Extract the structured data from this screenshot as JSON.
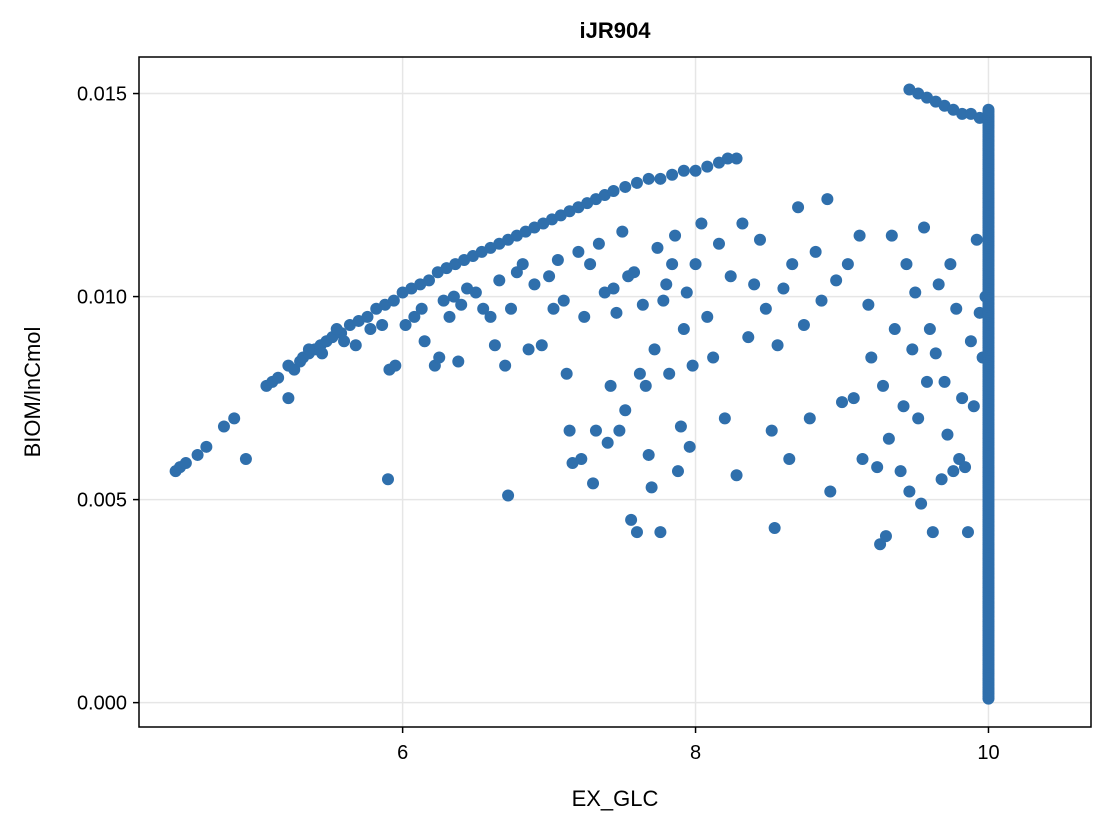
{
  "chart_data": {
    "type": "scatter",
    "title": "iJR904",
    "xlabel": "EX_GLC",
    "ylabel": "BIOM/lnCmol",
    "xlim": [
      4.2,
      10.7
    ],
    "ylim": [
      -0.0006,
      0.0159
    ],
    "xticks": [
      {
        "value": 6,
        "label": "6"
      },
      {
        "value": 8,
        "label": "8"
      },
      {
        "value": 10,
        "label": "10"
      }
    ],
    "yticks": [
      {
        "value": 0.0,
        "label": "0.000"
      },
      {
        "value": 0.005,
        "label": "0.005"
      },
      {
        "value": 0.01,
        "label": "0.010"
      },
      {
        "value": 0.015,
        "label": "0.015"
      }
    ],
    "grid": true,
    "color": "#2f6fac",
    "series": [
      {
        "points": [
          [
            4.45,
            0.0057
          ],
          [
            4.48,
            0.0058
          ],
          [
            4.52,
            0.0059
          ],
          [
            4.6,
            0.0061
          ],
          [
            4.66,
            0.0063
          ],
          [
            4.78,
            0.0068
          ],
          [
            4.85,
            0.007
          ],
          [
            4.93,
            0.006
          ],
          [
            5.07,
            0.0078
          ],
          [
            5.11,
            0.0079
          ],
          [
            5.15,
            0.008
          ],
          [
            5.22,
            0.0075
          ],
          [
            5.26,
            0.0082
          ],
          [
            5.22,
            0.0083
          ],
          [
            5.3,
            0.0084
          ],
          [
            5.32,
            0.0085
          ],
          [
            5.36,
            0.0086
          ],
          [
            5.4,
            0.0087
          ],
          [
            5.44,
            0.0088
          ],
          [
            5.48,
            0.0089
          ],
          [
            5.52,
            0.009
          ],
          [
            5.58,
            0.0091
          ],
          [
            5.64,
            0.0093
          ],
          [
            5.7,
            0.0094
          ],
          [
            5.76,
            0.0095
          ],
          [
            5.82,
            0.0097
          ],
          [
            5.88,
            0.0098
          ],
          [
            5.94,
            0.0099
          ],
          [
            6.0,
            0.0101
          ],
          [
            6.06,
            0.0102
          ],
          [
            6.12,
            0.0103
          ],
          [
            6.18,
            0.0104
          ],
          [
            6.24,
            0.0106
          ],
          [
            6.3,
            0.0107
          ],
          [
            6.36,
            0.0108
          ],
          [
            6.42,
            0.0109
          ],
          [
            6.48,
            0.011
          ],
          [
            6.54,
            0.0111
          ],
          [
            6.6,
            0.0112
          ],
          [
            6.66,
            0.0113
          ],
          [
            6.72,
            0.0114
          ],
          [
            6.78,
            0.0115
          ],
          [
            6.84,
            0.0116
          ],
          [
            6.9,
            0.0117
          ],
          [
            6.96,
            0.0118
          ],
          [
            7.02,
            0.0119
          ],
          [
            7.08,
            0.012
          ],
          [
            7.14,
            0.0121
          ],
          [
            7.2,
            0.0122
          ],
          [
            7.26,
            0.0123
          ],
          [
            7.32,
            0.0124
          ],
          [
            7.38,
            0.0125
          ],
          [
            7.44,
            0.0126
          ],
          [
            7.52,
            0.0127
          ],
          [
            7.6,
            0.0128
          ],
          [
            7.68,
            0.0129
          ],
          [
            7.76,
            0.0129
          ],
          [
            7.84,
            0.013
          ],
          [
            7.92,
            0.0131
          ],
          [
            8.0,
            0.0131
          ],
          [
            8.08,
            0.0132
          ],
          [
            8.16,
            0.0133
          ],
          [
            8.22,
            0.0134
          ],
          [
            8.28,
            0.0134
          ],
          [
            5.36,
            0.0087
          ],
          [
            5.45,
            0.0086
          ],
          [
            5.55,
            0.0092
          ],
          [
            5.6,
            0.0089
          ],
          [
            5.68,
            0.0088
          ],
          [
            5.78,
            0.0092
          ],
          [
            5.86,
            0.0093
          ],
          [
            5.9,
            0.0055
          ],
          [
            5.91,
            0.0082
          ],
          [
            5.95,
            0.0083
          ],
          [
            6.02,
            0.0093
          ],
          [
            6.08,
            0.0095
          ],
          [
            6.13,
            0.0097
          ],
          [
            6.15,
            0.0089
          ],
          [
            6.22,
            0.0083
          ],
          [
            6.25,
            0.0085
          ],
          [
            6.28,
            0.0099
          ],
          [
            6.32,
            0.0095
          ],
          [
            6.35,
            0.01
          ],
          [
            6.38,
            0.0084
          ],
          [
            6.4,
            0.0098
          ],
          [
            6.44,
            0.0102
          ],
          [
            6.5,
            0.0101
          ],
          [
            6.55,
            0.0097
          ],
          [
            6.6,
            0.0095
          ],
          [
            6.63,
            0.0088
          ],
          [
            6.66,
            0.0104
          ],
          [
            6.7,
            0.0083
          ],
          [
            6.72,
            0.0051
          ],
          [
            6.74,
            0.0097
          ],
          [
            6.78,
            0.0106
          ],
          [
            6.82,
            0.0108
          ],
          [
            6.86,
            0.0087
          ],
          [
            6.9,
            0.0103
          ],
          [
            6.95,
            0.0088
          ],
          [
            7.0,
            0.0105
          ],
          [
            7.03,
            0.0097
          ],
          [
            7.06,
            0.0109
          ],
          [
            7.1,
            0.0099
          ],
          [
            7.12,
            0.0081
          ],
          [
            7.14,
            0.0067
          ],
          [
            7.16,
            0.0059
          ],
          [
            7.2,
            0.0111
          ],
          [
            7.22,
            0.006
          ],
          [
            7.24,
            0.0095
          ],
          [
            7.28,
            0.0108
          ],
          [
            7.3,
            0.0054
          ],
          [
            7.32,
            0.0067
          ],
          [
            7.34,
            0.0113
          ],
          [
            7.38,
            0.0101
          ],
          [
            7.4,
            0.0064
          ],
          [
            7.42,
            0.0078
          ],
          [
            7.44,
            0.0102
          ],
          [
            7.46,
            0.0096
          ],
          [
            7.48,
            0.0067
          ],
          [
            7.5,
            0.0116
          ],
          [
            7.52,
            0.0072
          ],
          [
            7.54,
            0.0105
          ],
          [
            7.56,
            0.0045
          ],
          [
            7.58,
            0.0106
          ],
          [
            7.6,
            0.0042
          ],
          [
            7.62,
            0.0081
          ],
          [
            7.64,
            0.0098
          ],
          [
            7.66,
            0.0078
          ],
          [
            7.68,
            0.0061
          ],
          [
            7.7,
            0.0053
          ],
          [
            7.72,
            0.0087
          ],
          [
            7.74,
            0.0112
          ],
          [
            7.76,
            0.0042
          ],
          [
            7.78,
            0.0099
          ],
          [
            7.8,
            0.0103
          ],
          [
            7.82,
            0.0081
          ],
          [
            7.84,
            0.0108
          ],
          [
            7.86,
            0.0115
          ],
          [
            7.88,
            0.0057
          ],
          [
            7.9,
            0.0068
          ],
          [
            7.92,
            0.0092
          ],
          [
            7.94,
            0.0101
          ],
          [
            7.96,
            0.0063
          ],
          [
            7.98,
            0.0083
          ],
          [
            8.0,
            0.0108
          ],
          [
            8.04,
            0.0118
          ],
          [
            8.08,
            0.0095
          ],
          [
            8.12,
            0.0085
          ],
          [
            8.16,
            0.0113
          ],
          [
            8.2,
            0.007
          ],
          [
            8.24,
            0.0105
          ],
          [
            8.28,
            0.0056
          ],
          [
            8.32,
            0.0118
          ],
          [
            8.36,
            0.009
          ],
          [
            8.4,
            0.0103
          ],
          [
            8.44,
            0.0114
          ],
          [
            8.48,
            0.0097
          ],
          [
            8.52,
            0.0067
          ],
          [
            8.54,
            0.0043
          ],
          [
            8.56,
            0.0088
          ],
          [
            8.6,
            0.0102
          ],
          [
            8.64,
            0.006
          ],
          [
            8.66,
            0.0108
          ],
          [
            8.7,
            0.0122
          ],
          [
            8.74,
            0.0093
          ],
          [
            8.78,
            0.007
          ],
          [
            8.82,
            0.0111
          ],
          [
            8.86,
            0.0099
          ],
          [
            8.9,
            0.0124
          ],
          [
            8.92,
            0.0052
          ],
          [
            8.96,
            0.0104
          ],
          [
            9.0,
            0.0074
          ],
          [
            9.04,
            0.0108
          ],
          [
            9.08,
            0.0075
          ],
          [
            9.12,
            0.0115
          ],
          [
            9.14,
            0.006
          ],
          [
            9.18,
            0.0098
          ],
          [
            9.2,
            0.0085
          ],
          [
            9.24,
            0.0058
          ],
          [
            9.26,
            0.0039
          ],
          [
            9.28,
            0.0078
          ],
          [
            9.3,
            0.0041
          ],
          [
            9.32,
            0.0065
          ],
          [
            9.34,
            0.0115
          ],
          [
            9.36,
            0.0092
          ],
          [
            9.4,
            0.0057
          ],
          [
            9.42,
            0.0073
          ],
          [
            9.44,
            0.0108
          ],
          [
            9.46,
            0.0052
          ],
          [
            9.48,
            0.0087
          ],
          [
            9.5,
            0.0101
          ],
          [
            9.52,
            0.007
          ],
          [
            9.54,
            0.0049
          ],
          [
            9.56,
            0.0117
          ],
          [
            9.58,
            0.0079
          ],
          [
            9.6,
            0.0092
          ],
          [
            9.62,
            0.0042
          ],
          [
            9.64,
            0.0086
          ],
          [
            9.66,
            0.0103
          ],
          [
            9.68,
            0.0055
          ],
          [
            9.7,
            0.0079
          ],
          [
            9.72,
            0.0066
          ],
          [
            9.74,
            0.0108
          ],
          [
            9.76,
            0.0057
          ],
          [
            9.78,
            0.0097
          ],
          [
            9.8,
            0.006
          ],
          [
            9.82,
            0.0075
          ],
          [
            9.84,
            0.0058
          ],
          [
            9.86,
            0.0042
          ],
          [
            9.88,
            0.0089
          ],
          [
            9.9,
            0.0073
          ],
          [
            9.92,
            0.0114
          ],
          [
            9.94,
            0.0096
          ],
          [
            9.96,
            0.0085
          ],
          [
            9.98,
            0.01
          ],
          [
            9.46,
            0.0151
          ],
          [
            9.52,
            0.015
          ],
          [
            9.58,
            0.0149
          ],
          [
            9.64,
            0.0148
          ],
          [
            9.7,
            0.0147
          ],
          [
            9.76,
            0.0146
          ],
          [
            9.82,
            0.0145
          ],
          [
            9.88,
            0.0145
          ],
          [
            9.94,
            0.0144
          ],
          [
            9.98,
            0.0144
          ]
        ]
      },
      {
        "name": "",
        "vertical_band": {
          "x": 10.0,
          "y_from": 0.0001,
          "y_to": 0.0146
        }
      }
    ]
  }
}
